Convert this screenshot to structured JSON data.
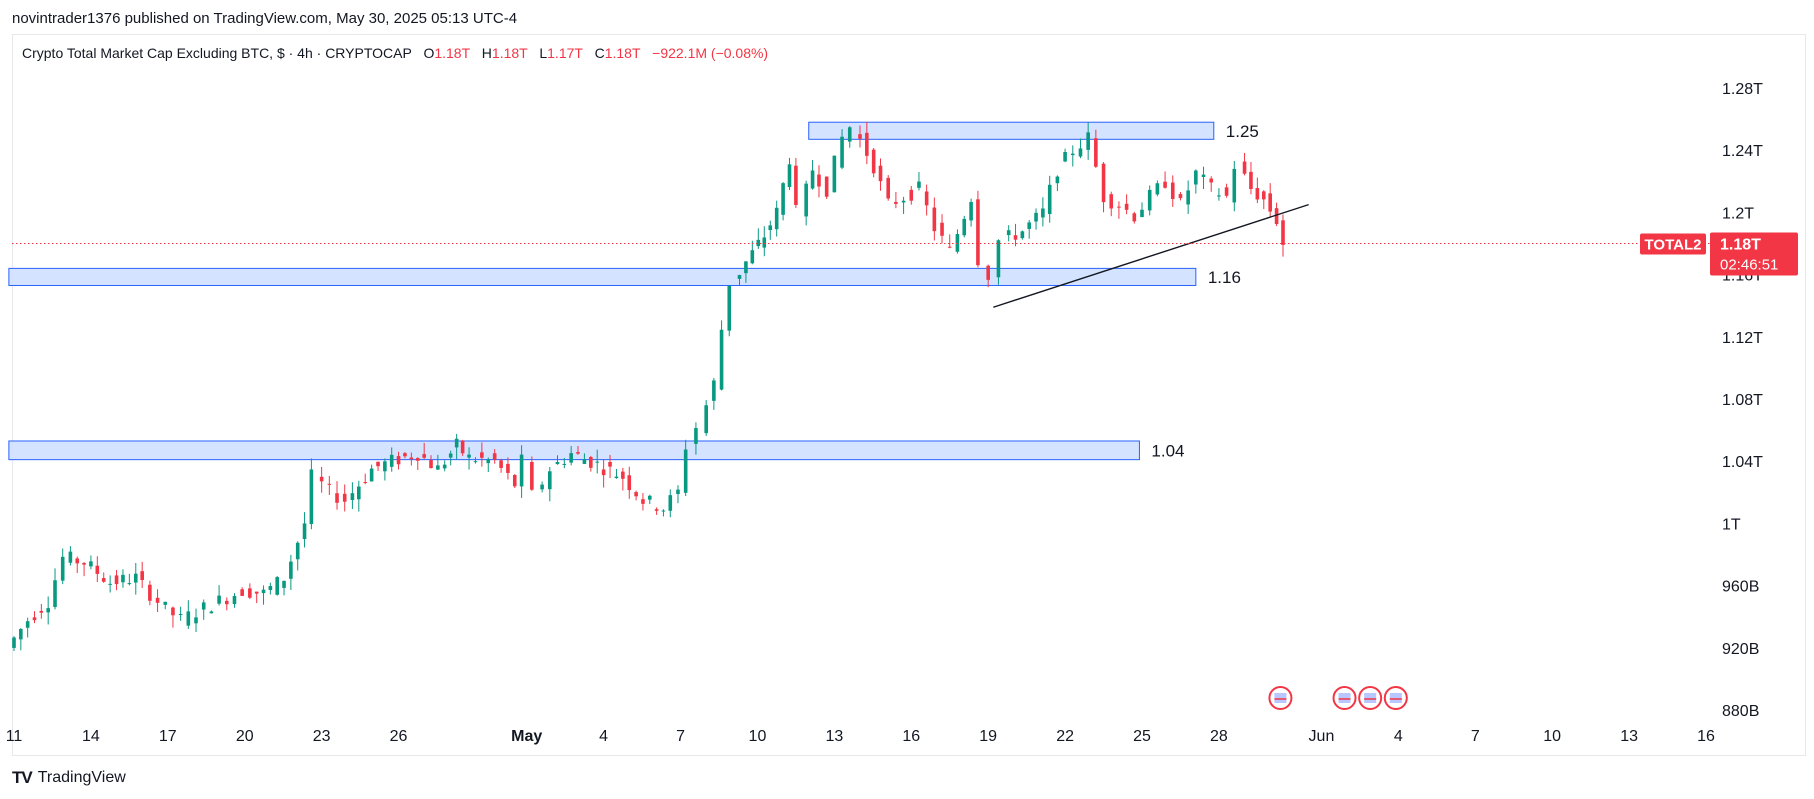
{
  "header": {
    "published": "novintrader1376 published on TradingView.com, May 30, 2025 05:13 UTC-4"
  },
  "legend": {
    "title": "Crypto Total Market Cap Excluding BTC, $ · 4h · CRYPTOCAP",
    "o_label": "O",
    "o_value": "1.18T",
    "h_label": "H",
    "h_value": "1.18T",
    "l_label": "L",
    "l_value": "1.17T",
    "c_label": "C",
    "c_value": "1.18T",
    "change": "−922.1M (−0.08%)"
  },
  "footer": {
    "logo": "TradingView"
  },
  "colors": {
    "up": "#089981",
    "down": "#f23645",
    "zone_fill": "#cfe0ff",
    "zone_stroke": "#2962ff",
    "price_line": "#f23645"
  },
  "chart_data": {
    "type": "candlestick",
    "symbol": "TOTAL2",
    "last_price": "1.18T",
    "countdown": "02:46:51",
    "y_unit": "USD billions",
    "ylim": [
      872,
      1288
    ],
    "y_ticks": [
      {
        "value": 880,
        "label": "880B"
      },
      {
        "value": 920,
        "label": "920B"
      },
      {
        "value": 960,
        "label": "960B"
      },
      {
        "value": 1000,
        "label": "1T"
      },
      {
        "value": 1040,
        "label": "1.04T"
      },
      {
        "value": 1080,
        "label": "1.08T"
      },
      {
        "value": 1120,
        "label": "1.12T"
      },
      {
        "value": 1160,
        "label": "1.16T"
      },
      {
        "value": 1200,
        "label": "1.2T"
      },
      {
        "value": 1240,
        "label": "1.24T"
      },
      {
        "value": 1280,
        "label": "1.28T"
      }
    ],
    "x_ticks": [
      {
        "day": 11,
        "label": "11"
      },
      {
        "day": 14,
        "label": "14"
      },
      {
        "day": 17,
        "label": "17"
      },
      {
        "day": 20,
        "label": "20"
      },
      {
        "day": 23,
        "label": "23"
      },
      {
        "day": 26,
        "label": "26"
      },
      {
        "day": 31,
        "label": "May",
        "bold": true
      },
      {
        "day": 34,
        "label": "4"
      },
      {
        "day": 37,
        "label": "7"
      },
      {
        "day": 40,
        "label": "10"
      },
      {
        "day": 43,
        "label": "13"
      },
      {
        "day": 46,
        "label": "16"
      },
      {
        "day": 49,
        "label": "19"
      },
      {
        "day": 52,
        "label": "22"
      },
      {
        "day": 55,
        "label": "25"
      },
      {
        "day": 58,
        "label": "28"
      },
      {
        "day": 62,
        "label": "Jun"
      },
      {
        "day": 65,
        "label": "4"
      },
      {
        "day": 68,
        "label": "7"
      },
      {
        "day": 71,
        "label": "10"
      },
      {
        "day": 74,
        "label": "13"
      },
      {
        "day": 77,
        "label": "16"
      }
    ],
    "zones": [
      {
        "label": "1.25",
        "low": 1247,
        "high": 1258,
        "from_day": 42.0,
        "to_day": 57.8
      },
      {
        "label": "1.16",
        "low": 1153,
        "high": 1164,
        "from_day": 10.8,
        "to_day": 57.1
      },
      {
        "label": "1.04",
        "low": 1041,
        "high": 1053,
        "from_day": 10.8,
        "to_day": 54.9
      }
    ],
    "trendline": {
      "from": [
        49.2,
        1139
      ],
      "to": [
        61.5,
        1205
      ]
    },
    "candle_path": [
      [
        11.0,
        920
      ],
      [
        11.8,
        938
      ],
      [
        12.6,
        950
      ],
      [
        13.2,
        978
      ],
      [
        14.0,
        975
      ],
      [
        15.0,
        962
      ],
      [
        16.0,
        965
      ],
      [
        17.2,
        945
      ],
      [
        17.8,
        938
      ],
      [
        19.0,
        948
      ],
      [
        20.2,
        957
      ],
      [
        21.0,
        955
      ],
      [
        21.8,
        965
      ],
      [
        22.6,
        1000
      ],
      [
        23.0,
        1030
      ],
      [
        23.6,
        1020
      ],
      [
        24.2,
        1015
      ],
      [
        25.2,
        1035
      ],
      [
        26.0,
        1040
      ],
      [
        27.0,
        1045
      ],
      [
        27.8,
        1035
      ],
      [
        28.5,
        1050
      ],
      [
        29.0,
        1042
      ],
      [
        30.0,
        1040
      ],
      [
        30.8,
        1025
      ],
      [
        31.2,
        1040
      ],
      [
        31.6,
        1018
      ],
      [
        32.2,
        1035
      ],
      [
        33.0,
        1045
      ],
      [
        34.0,
        1038
      ],
      [
        35.0,
        1030
      ],
      [
        35.8,
        1015
      ],
      [
        36.6,
        1010
      ],
      [
        37.2,
        1020
      ],
      [
        37.6,
        1050
      ],
      [
        38.0,
        1062
      ],
      [
        38.6,
        1090
      ],
      [
        38.9,
        1125
      ],
      [
        39.3,
        1155
      ],
      [
        39.8,
        1168
      ],
      [
        40.5,
        1185
      ],
      [
        41.0,
        1200
      ],
      [
        41.5,
        1235
      ],
      [
        41.9,
        1200
      ],
      [
        42.4,
        1228
      ],
      [
        43.0,
        1215
      ],
      [
        43.6,
        1248
      ],
      [
        44.0,
        1255
      ],
      [
        44.8,
        1230
      ],
      [
        45.4,
        1205
      ],
      [
        46.0,
        1210
      ],
      [
        46.6,
        1215
      ],
      [
        47.2,
        1190
      ],
      [
        47.8,
        1175
      ],
      [
        48.6,
        1210
      ],
      [
        49.0,
        1170
      ],
      [
        49.4,
        1160
      ],
      [
        49.8,
        1182
      ],
      [
        50.6,
        1188
      ],
      [
        51.4,
        1200
      ],
      [
        52.0,
        1228
      ],
      [
        52.6,
        1240
      ],
      [
        53.2,
        1248
      ],
      [
        53.8,
        1210
      ],
      [
        54.4,
        1205
      ],
      [
        55.0,
        1198
      ],
      [
        55.6,
        1210
      ],
      [
        56.2,
        1220
      ],
      [
        56.8,
        1205
      ],
      [
        57.4,
        1225
      ],
      [
        58.0,
        1215
      ],
      [
        58.6,
        1210
      ],
      [
        59.0,
        1230
      ],
      [
        59.5,
        1215
      ],
      [
        60.0,
        1208
      ],
      [
        60.5,
        1195
      ],
      [
        60.9,
        1180
      ]
    ],
    "event_flags": [
      {
        "day": 60.4
      },
      {
        "day": 62.9
      },
      {
        "day": 63.9
      },
      {
        "day": 64.9
      }
    ]
  }
}
